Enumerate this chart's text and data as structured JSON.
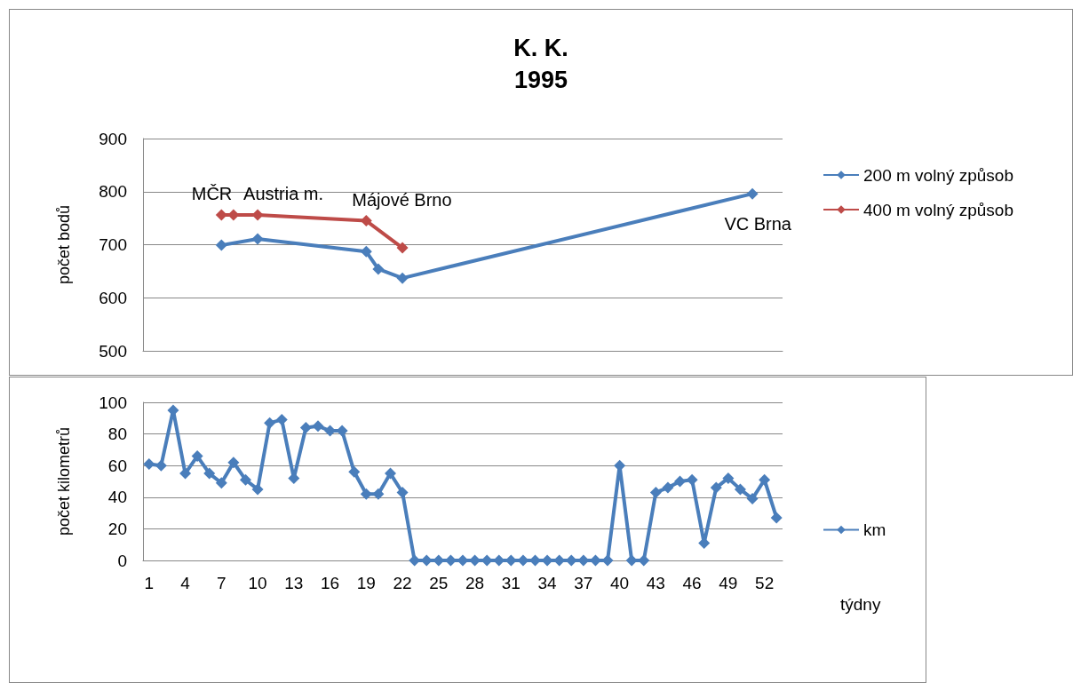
{
  "chart_data": [
    {
      "type": "line",
      "title": "K. K.\n1995",
      "ylabel": "počet bodů",
      "categories": [
        "1",
        null,
        null,
        "4",
        null,
        null,
        "7",
        null,
        null,
        "10",
        null,
        null,
        "13",
        null,
        null,
        "16",
        null,
        null,
        "19",
        null,
        null,
        "22",
        null,
        null,
        "25",
        null,
        null,
        "28",
        null,
        null,
        "31",
        null,
        null,
        "34",
        null,
        null,
        "37",
        null,
        null,
        "40",
        null,
        null,
        "43",
        null,
        null,
        "46",
        null,
        null,
        "49",
        null,
        null,
        "52",
        null
      ],
      "series": [
        {
          "name": "200 m volný způsob",
          "color": "#4a7ebb",
          "values": [
            null,
            null,
            null,
            null,
            null,
            null,
            699,
            null,
            null,
            711,
            null,
            null,
            null,
            null,
            null,
            null,
            null,
            null,
            687,
            654,
            null,
            637,
            null,
            null,
            null,
            null,
            null,
            null,
            null,
            null,
            null,
            null,
            null,
            null,
            null,
            null,
            null,
            null,
            null,
            null,
            null,
            null,
            null,
            null,
            null,
            null,
            null,
            null,
            null,
            null,
            796,
            null,
            null
          ]
        },
        {
          "name": "400 m volný způsob",
          "color": "#be4b48",
          "values": [
            null,
            null,
            null,
            null,
            null,
            null,
            756,
            756,
            null,
            756,
            null,
            null,
            null,
            null,
            null,
            null,
            null,
            null,
            745,
            null,
            null,
            694,
            null,
            null,
            null,
            null,
            null,
            null,
            null,
            null,
            null,
            null,
            null,
            null,
            null,
            null,
            null,
            null,
            null,
            null,
            null,
            null,
            null,
            null,
            null,
            null,
            null,
            null,
            null,
            null,
            null,
            null,
            null
          ]
        }
      ],
      "ylim": [
        500,
        900
      ],
      "yticks": [
        500,
        600,
        700,
        800,
        900
      ],
      "grid": "y",
      "legend": "right",
      "marker": "diamond",
      "tick_labels": "y",
      "annotations": [
        {
          "text": "MČR",
          "x": "7",
          "y": 756
        },
        {
          "text": "Austria m.",
          "x": "10",
          "y": 756
        },
        {
          "text": "Májové Brno",
          "x": "19",
          "y": 745
        },
        "VC Brna"
      ]
    },
    {
      "type": "line",
      "ylabel": "počet kilometrů",
      "xlabel": "týdny",
      "categories": [
        "1",
        null,
        null,
        "4",
        null,
        null,
        "7",
        null,
        null,
        "10",
        null,
        null,
        "13",
        null,
        null,
        "16",
        null,
        null,
        "19",
        null,
        null,
        "22",
        null,
        null,
        "25",
        null,
        null,
        "28",
        null,
        null,
        "31",
        null,
        null,
        "34",
        null,
        null,
        "37",
        null,
        null,
        "40",
        null,
        null,
        "43",
        null,
        null,
        "46",
        null,
        null,
        "49",
        null,
        null,
        "52",
        null
      ],
      "series": [
        {
          "name": "km",
          "color": "#4a7ebb",
          "values": [
            61,
            60,
            95,
            55,
            66,
            55,
            49,
            62,
            51,
            45,
            87,
            89,
            52,
            84,
            85,
            82,
            82,
            56,
            42,
            42,
            55,
            43,
            0,
            0,
            0,
            0,
            0,
            0,
            0,
            0,
            0,
            0,
            0,
            0,
            0,
            0,
            0,
            0,
            0,
            60,
            0,
            0,
            43,
            46,
            50,
            51,
            11,
            46,
            52,
            45,
            39,
            51,
            27
          ]
        }
      ],
      "ylim": [
        0,
        100
      ],
      "yticks": [
        0,
        20,
        40,
        60,
        80,
        100
      ],
      "grid": "y",
      "legend": "right",
      "marker": "diamond"
    }
  ]
}
